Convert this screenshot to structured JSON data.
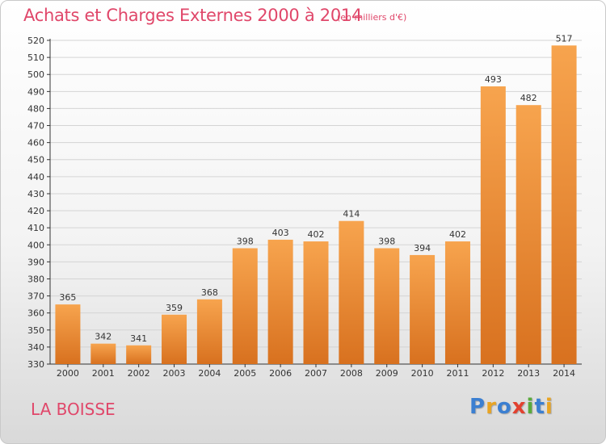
{
  "title": "Achats et Charges Externes 2000 à 2014",
  "subtitle": "(en milliers d'€)",
  "commune": "LA BOISSE",
  "brand": {
    "letters": [
      {
        "char": "P",
        "color": "#3b7fd1"
      },
      {
        "char": "r",
        "color": "#e8a423"
      },
      {
        "char": "o",
        "color": "#3b7fd1"
      },
      {
        "char": "x",
        "color": "#e2412f"
      },
      {
        "char": "i",
        "color": "#5aaa3c"
      },
      {
        "char": "t",
        "color": "#3b7fd1"
      },
      {
        "char": "i",
        "color": "#e8a423"
      }
    ]
  },
  "colors": {
    "bar_top": "#f7a44e",
    "bar_bottom": "#d8711f",
    "grid": "#d4d4d4",
    "axis": "#333333"
  },
  "chart_data": {
    "type": "bar",
    "title": "Achats et Charges Externes 2000 à 2014",
    "subtitle": "(en milliers d'€)",
    "xlabel": "",
    "ylabel": "",
    "categories": [
      "2000",
      "2001",
      "2002",
      "2003",
      "2004",
      "2005",
      "2006",
      "2007",
      "2008",
      "2009",
      "2010",
      "2011",
      "2012",
      "2013",
      "2014"
    ],
    "values": [
      365,
      342,
      341,
      359,
      368,
      398,
      403,
      402,
      414,
      398,
      394,
      402,
      493,
      482,
      517
    ],
    "ylim": [
      330,
      520
    ],
    "yticks": [
      330,
      340,
      350,
      360,
      370,
      380,
      390,
      400,
      410,
      420,
      430,
      440,
      450,
      460,
      470,
      480,
      490,
      500,
      510,
      520
    ],
    "grid": true,
    "data_labels": true
  }
}
